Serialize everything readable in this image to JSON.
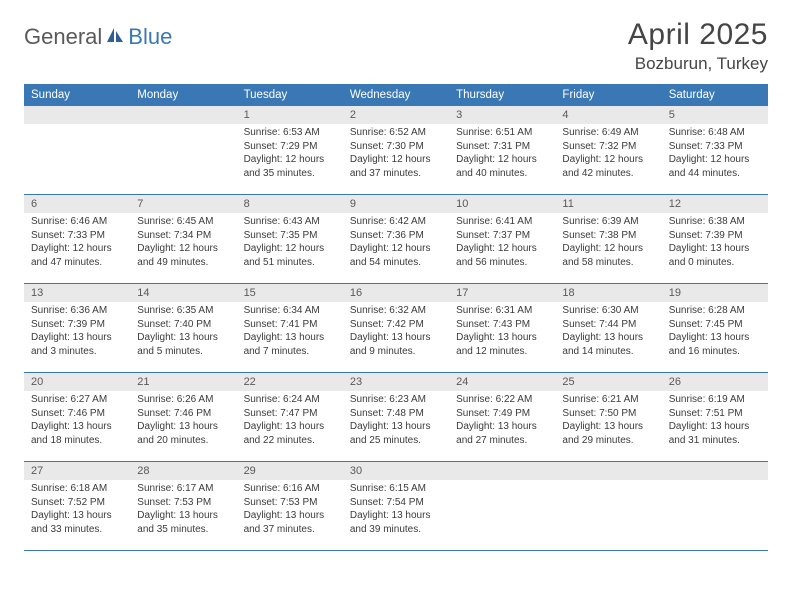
{
  "logo": {
    "part1": "General",
    "part2": "Blue"
  },
  "title": "April 2025",
  "location": "Bozburun, Turkey",
  "colors": {
    "header_bg": "#3a78b5",
    "header_text": "#ffffff",
    "daynum_bg": "#e9e9e9",
    "daynum_text": "#595959",
    "rule": "#3a78b5",
    "logo_gray": "#5a5a5a",
    "logo_blue": "#3a78b5",
    "body_text": "#3b3b3b"
  },
  "daysOfWeek": [
    "Sunday",
    "Monday",
    "Tuesday",
    "Wednesday",
    "Thursday",
    "Friday",
    "Saturday"
  ],
  "weeks": [
    [
      null,
      null,
      {
        "n": "1",
        "sr": "6:53 AM",
        "ss": "7:29 PM",
        "dl": "12 hours and 35 minutes."
      },
      {
        "n": "2",
        "sr": "6:52 AM",
        "ss": "7:30 PM",
        "dl": "12 hours and 37 minutes."
      },
      {
        "n": "3",
        "sr": "6:51 AM",
        "ss": "7:31 PM",
        "dl": "12 hours and 40 minutes."
      },
      {
        "n": "4",
        "sr": "6:49 AM",
        "ss": "7:32 PM",
        "dl": "12 hours and 42 minutes."
      },
      {
        "n": "5",
        "sr": "6:48 AM",
        "ss": "7:33 PM",
        "dl": "12 hours and 44 minutes."
      }
    ],
    [
      {
        "n": "6",
        "sr": "6:46 AM",
        "ss": "7:33 PM",
        "dl": "12 hours and 47 minutes."
      },
      {
        "n": "7",
        "sr": "6:45 AM",
        "ss": "7:34 PM",
        "dl": "12 hours and 49 minutes."
      },
      {
        "n": "8",
        "sr": "6:43 AM",
        "ss": "7:35 PM",
        "dl": "12 hours and 51 minutes."
      },
      {
        "n": "9",
        "sr": "6:42 AM",
        "ss": "7:36 PM",
        "dl": "12 hours and 54 minutes."
      },
      {
        "n": "10",
        "sr": "6:41 AM",
        "ss": "7:37 PM",
        "dl": "12 hours and 56 minutes."
      },
      {
        "n": "11",
        "sr": "6:39 AM",
        "ss": "7:38 PM",
        "dl": "12 hours and 58 minutes."
      },
      {
        "n": "12",
        "sr": "6:38 AM",
        "ss": "7:39 PM",
        "dl": "13 hours and 0 minutes."
      }
    ],
    [
      {
        "n": "13",
        "sr": "6:36 AM",
        "ss": "7:39 PM",
        "dl": "13 hours and 3 minutes."
      },
      {
        "n": "14",
        "sr": "6:35 AM",
        "ss": "7:40 PM",
        "dl": "13 hours and 5 minutes."
      },
      {
        "n": "15",
        "sr": "6:34 AM",
        "ss": "7:41 PM",
        "dl": "13 hours and 7 minutes."
      },
      {
        "n": "16",
        "sr": "6:32 AM",
        "ss": "7:42 PM",
        "dl": "13 hours and 9 minutes."
      },
      {
        "n": "17",
        "sr": "6:31 AM",
        "ss": "7:43 PM",
        "dl": "13 hours and 12 minutes."
      },
      {
        "n": "18",
        "sr": "6:30 AM",
        "ss": "7:44 PM",
        "dl": "13 hours and 14 minutes."
      },
      {
        "n": "19",
        "sr": "6:28 AM",
        "ss": "7:45 PM",
        "dl": "13 hours and 16 minutes."
      }
    ],
    [
      {
        "n": "20",
        "sr": "6:27 AM",
        "ss": "7:46 PM",
        "dl": "13 hours and 18 minutes."
      },
      {
        "n": "21",
        "sr": "6:26 AM",
        "ss": "7:46 PM",
        "dl": "13 hours and 20 minutes."
      },
      {
        "n": "22",
        "sr": "6:24 AM",
        "ss": "7:47 PM",
        "dl": "13 hours and 22 minutes."
      },
      {
        "n": "23",
        "sr": "6:23 AM",
        "ss": "7:48 PM",
        "dl": "13 hours and 25 minutes."
      },
      {
        "n": "24",
        "sr": "6:22 AM",
        "ss": "7:49 PM",
        "dl": "13 hours and 27 minutes."
      },
      {
        "n": "25",
        "sr": "6:21 AM",
        "ss": "7:50 PM",
        "dl": "13 hours and 29 minutes."
      },
      {
        "n": "26",
        "sr": "6:19 AM",
        "ss": "7:51 PM",
        "dl": "13 hours and 31 minutes."
      }
    ],
    [
      {
        "n": "27",
        "sr": "6:18 AM",
        "ss": "7:52 PM",
        "dl": "13 hours and 33 minutes."
      },
      {
        "n": "28",
        "sr": "6:17 AM",
        "ss": "7:53 PM",
        "dl": "13 hours and 35 minutes."
      },
      {
        "n": "29",
        "sr": "6:16 AM",
        "ss": "7:53 PM",
        "dl": "13 hours and 37 minutes."
      },
      {
        "n": "30",
        "sr": "6:15 AM",
        "ss": "7:54 PM",
        "dl": "13 hours and 39 minutes."
      },
      null,
      null,
      null
    ]
  ],
  "labels": {
    "sunrise_prefix": "Sunrise: ",
    "sunset_prefix": "Sunset: ",
    "daylight_prefix": "Daylight: "
  }
}
